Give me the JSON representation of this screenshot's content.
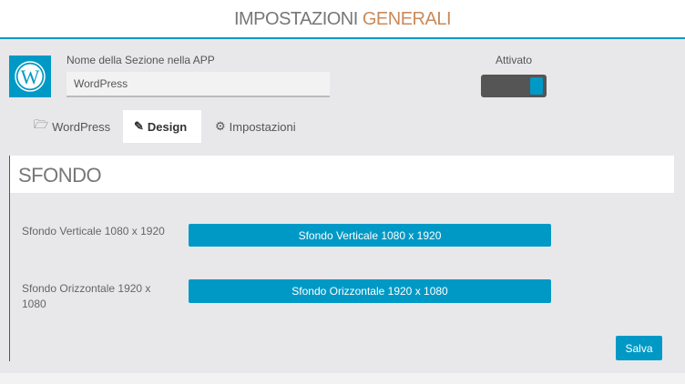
{
  "header": {
    "title_part1": "IMPOSTAZIONI ",
    "title_part2": "GENERALI"
  },
  "section": {
    "icon": "wordpress-icon",
    "name_label": "Nome della Sezione nella APP",
    "name_value": "WordPress",
    "enabled_label": "Attivato",
    "enabled": true
  },
  "tabs": [
    {
      "label": "WordPress",
      "icon": "folder-open-icon"
    },
    {
      "label": "Design",
      "icon": "pencil-icon",
      "active": true
    },
    {
      "label": "Impostazioni",
      "icon": "gears-icon"
    }
  ],
  "panel": {
    "title": "SFONDO",
    "rows": [
      {
        "label": "Sfondo Verticale 1080 x 1920",
        "button": "Sfondo Verticale 1080 x 1920"
      },
      {
        "label": "Sfondo Orizzontale 1920 x 1080",
        "button": "Sfondo Orizzontale 1920 x 1080"
      }
    ],
    "save_label": "Salva"
  },
  "colors": {
    "accent": "#0099c6",
    "toggle_bg": "#555555",
    "panel_bg": "#e8e8ea"
  }
}
